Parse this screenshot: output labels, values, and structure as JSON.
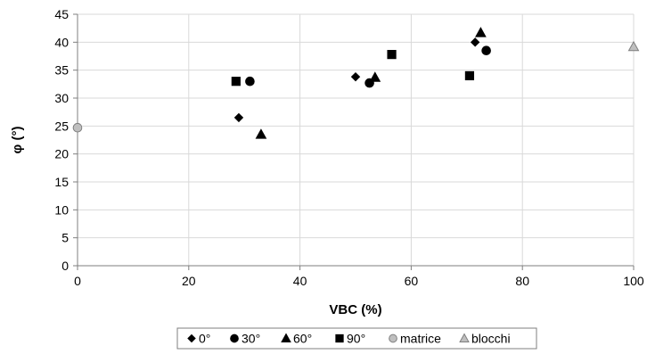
{
  "chart_data": {
    "type": "scatter",
    "title": "",
    "xlabel": "VBC (%)",
    "ylabel": "φ (°)",
    "xlim": [
      0,
      100
    ],
    "ylim": [
      0,
      45
    ],
    "x_ticks": [
      "0",
      "20",
      "40",
      "60",
      "80",
      "100"
    ],
    "y_ticks": [
      "0",
      "5",
      "10",
      "15",
      "20",
      "25",
      "30",
      "35",
      "40",
      "45"
    ],
    "grid": true,
    "legend_position": "bottom",
    "series": [
      {
        "name": "0°",
        "marker": "diamond",
        "color": "#000000",
        "points": [
          {
            "x": 29,
            "y": 26.5
          },
          {
            "x": 50,
            "y": 33.8
          },
          {
            "x": 71.5,
            "y": 40
          }
        ]
      },
      {
        "name": "30°",
        "marker": "circle",
        "color": "#000000",
        "points": [
          {
            "x": 31,
            "y": 33
          },
          {
            "x": 52.5,
            "y": 32.7
          },
          {
            "x": 73.5,
            "y": 38.5
          }
        ]
      },
      {
        "name": "60°",
        "marker": "triangle",
        "color": "#000000",
        "points": [
          {
            "x": 33,
            "y": 23.5
          },
          {
            "x": 53.5,
            "y": 33.7
          },
          {
            "x": 72.5,
            "y": 41.7
          }
        ]
      },
      {
        "name": "90°",
        "marker": "square",
        "color": "#000000",
        "points": [
          {
            "x": 28.5,
            "y": 33
          },
          {
            "x": 56.5,
            "y": 37.8
          },
          {
            "x": 70.5,
            "y": 34
          }
        ]
      },
      {
        "name": "matrice",
        "marker": "circle",
        "color": "#bfbfbf",
        "points": [
          {
            "x": 0,
            "y": 24.7
          }
        ]
      },
      {
        "name": "blocchi",
        "marker": "triangle",
        "color": "#bfbfbf",
        "points": [
          {
            "x": 100,
            "y": 39.2
          }
        ]
      }
    ]
  }
}
